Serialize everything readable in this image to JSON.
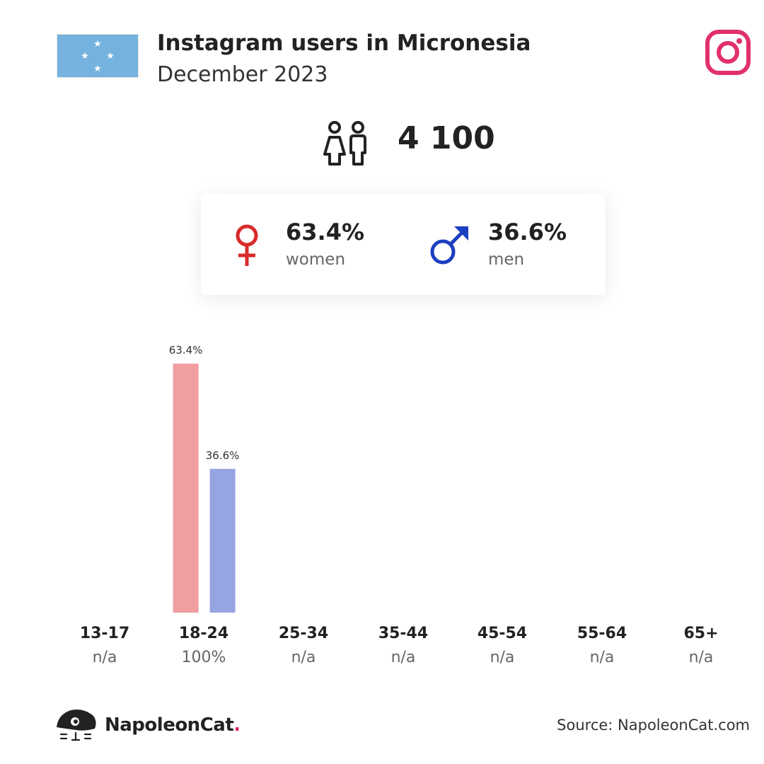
{
  "header": {
    "title": "Instagram users in Micronesia",
    "subtitle": "December 2023",
    "flag_icon": "micronesia-flag-icon",
    "platform_icon": "instagram-icon"
  },
  "total": {
    "icon": "people-icon",
    "value": "4 100"
  },
  "gender": {
    "women": {
      "percent": "63.4%",
      "label": "women",
      "icon": "female-symbol-icon",
      "color": "#d92a2a"
    },
    "men": {
      "percent": "36.6%",
      "label": "men",
      "icon": "male-symbol-icon",
      "color": "#1c3fbf"
    }
  },
  "chart_data": {
    "type": "bar",
    "categories": [
      "13-17",
      "18-24",
      "25-34",
      "35-44",
      "45-54",
      "55-64",
      "65+"
    ],
    "category_shares": [
      "n/a",
      "100%",
      "n/a",
      "n/a",
      "n/a",
      "n/a",
      "n/a"
    ],
    "series": [
      {
        "name": "women",
        "values": [
          null,
          63.4,
          null,
          null,
          null,
          null,
          null
        ],
        "labels": [
          "",
          "63.4%",
          "",
          "",
          "",
          "",
          ""
        ],
        "color": "#f09ea0"
      },
      {
        "name": "men",
        "values": [
          null,
          36.6,
          null,
          null,
          null,
          null,
          null
        ],
        "labels": [
          "",
          "36.6%",
          "",
          "",
          "",
          "",
          ""
        ],
        "color": "#96a4e2"
      }
    ],
    "ylim": [
      0,
      63.4
    ],
    "grid": false
  },
  "footer": {
    "brand_icon": "napoleoncat-logo-icon",
    "brand_name": "NapoleonCat",
    "brand_dot": ".",
    "source": "Source: NapoleonCat.com"
  }
}
